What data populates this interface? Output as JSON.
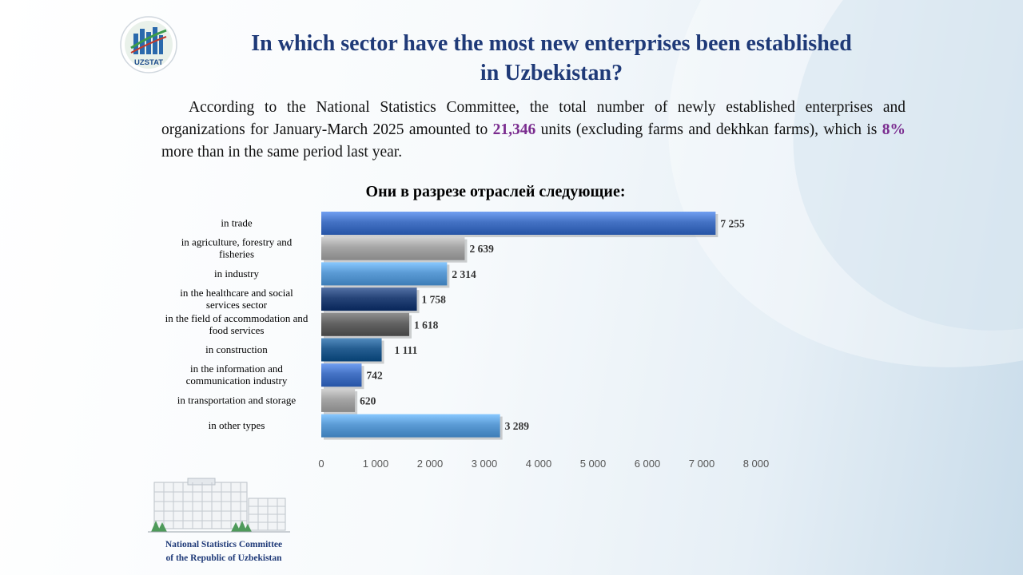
{
  "logo": {
    "text": "UZSTAT"
  },
  "header": {
    "title_line1": "In which sector have the most new enterprises been established",
    "title_line2": "in Uzbekistan?"
  },
  "intro": {
    "part1": "According to the National Statistics Committee, the total number of newly established enterprises and organizations for January-March 2025 amounted to ",
    "highlight1": "21,346",
    "part2": " units (excluding farms and dekhkan farms), which is ",
    "highlight2": "8%",
    "part3": " more than in the same period last year."
  },
  "chart_data": {
    "type": "bar",
    "orientation": "horizontal",
    "title": "Они в разрезе отраслей следующие:",
    "categories": [
      [
        "in trade"
      ],
      [
        "in agriculture, forestry and",
        "fisheries"
      ],
      [
        "in industry"
      ],
      [
        "in the healthcare and social",
        "services sector"
      ],
      [
        "in the field of accommodation and",
        "food services"
      ],
      [
        "in construction"
      ],
      [
        "in the information  and",
        "communication industry"
      ],
      [
        "in transportation and storage"
      ],
      [
        "in other types"
      ]
    ],
    "values": [
      7255,
      2639,
      2314,
      1758,
      1618,
      1111,
      742,
      620,
      3289
    ],
    "value_labels": [
      "7 255",
      "2 639",
      "2 314",
      "1 758",
      "1 618",
      "1 111",
      "742",
      "620",
      "3 289"
    ],
    "bar_colors": [
      "#4472c4",
      "#a5a5a5",
      "#5b9bd5",
      "#264478",
      "#636363",
      "#255e91",
      "#4472c4",
      "#a5a5a5",
      "#5b9bd5"
    ],
    "xlim": [
      0,
      8000
    ],
    "xticks": [
      0,
      1000,
      2000,
      3000,
      4000,
      5000,
      6000,
      7000,
      8000
    ],
    "xtick_labels": [
      "0",
      "1 000",
      "2 000",
      "3 000",
      "4 000",
      "5 000",
      "6 000",
      "7 000",
      "8 000"
    ],
    "grid": false
  },
  "footer": {
    "line1": "National  Statistics Committee",
    "line2": "of the Republic  of Uzbekistan"
  }
}
